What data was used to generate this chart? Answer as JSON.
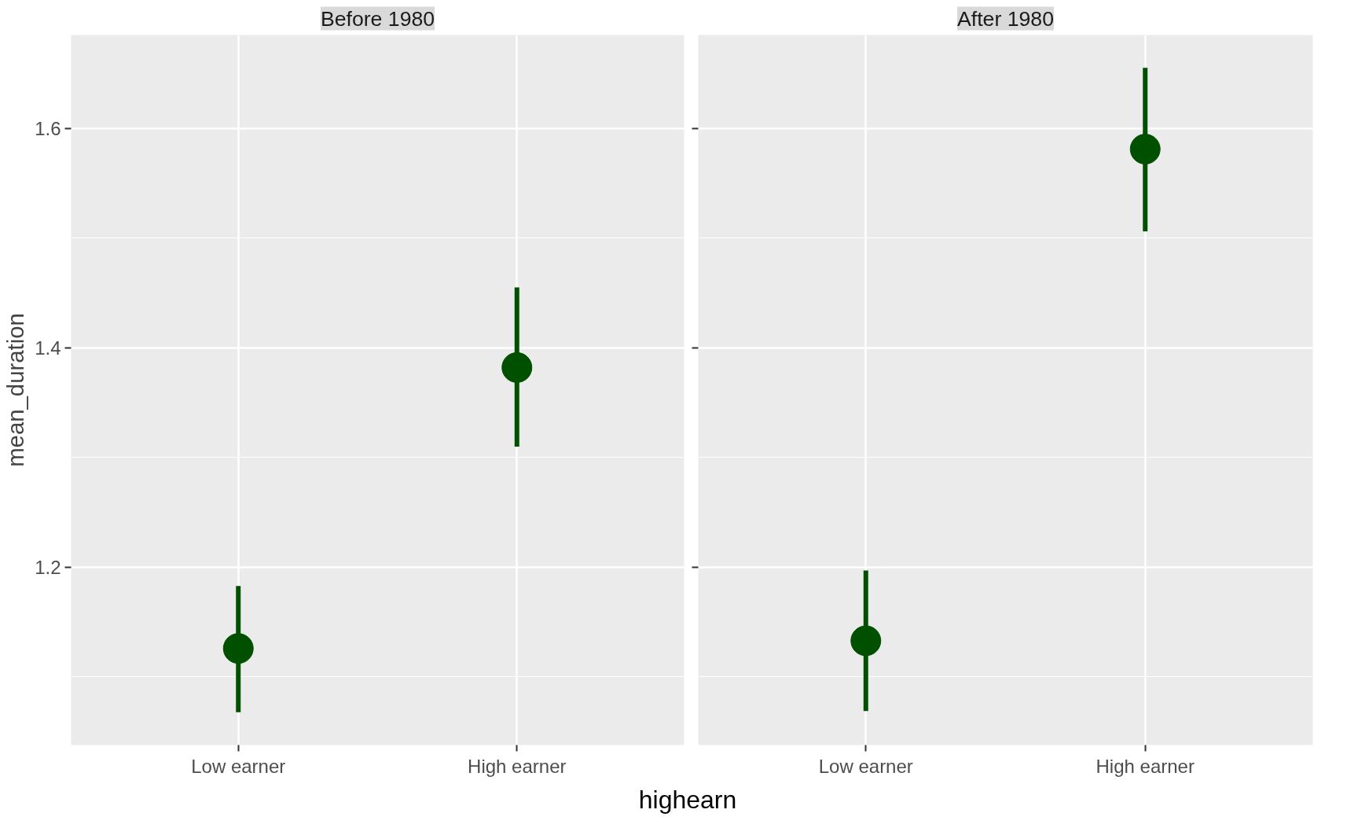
{
  "chart_data": [
    {
      "type": "scatter",
      "title": "Before 1980",
      "categories": [
        "Low earner",
        "High earner"
      ],
      "xlabel": "highearn",
      "ylabel": "mean_duration",
      "ylim": [
        1.038,
        1.685
      ],
      "yticks": [
        1.2,
        1.4,
        1.6
      ],
      "grid": true,
      "marker": "circle",
      "series": [
        {
          "color": "#005000",
          "values": [
            1.126,
            1.382
          ],
          "errors": [
            [
              1.068,
              1.183
            ],
            [
              1.31,
              1.455
            ]
          ]
        }
      ]
    },
    {
      "type": "scatter",
      "title": "After 1980",
      "categories": [
        "Low earner",
        "High earner"
      ],
      "ylim": [
        1.038,
        1.685
      ],
      "yticks": [
        1.2,
        1.4,
        1.6
      ],
      "grid": true,
      "marker": "circle",
      "tick_labels": "x",
      "series": [
        {
          "color": "#005000",
          "values": [
            1.133,
            1.581
          ],
          "errors": [
            [
              1.069,
              1.197
            ],
            [
              1.506,
              1.655
            ]
          ]
        }
      ]
    }
  ]
}
